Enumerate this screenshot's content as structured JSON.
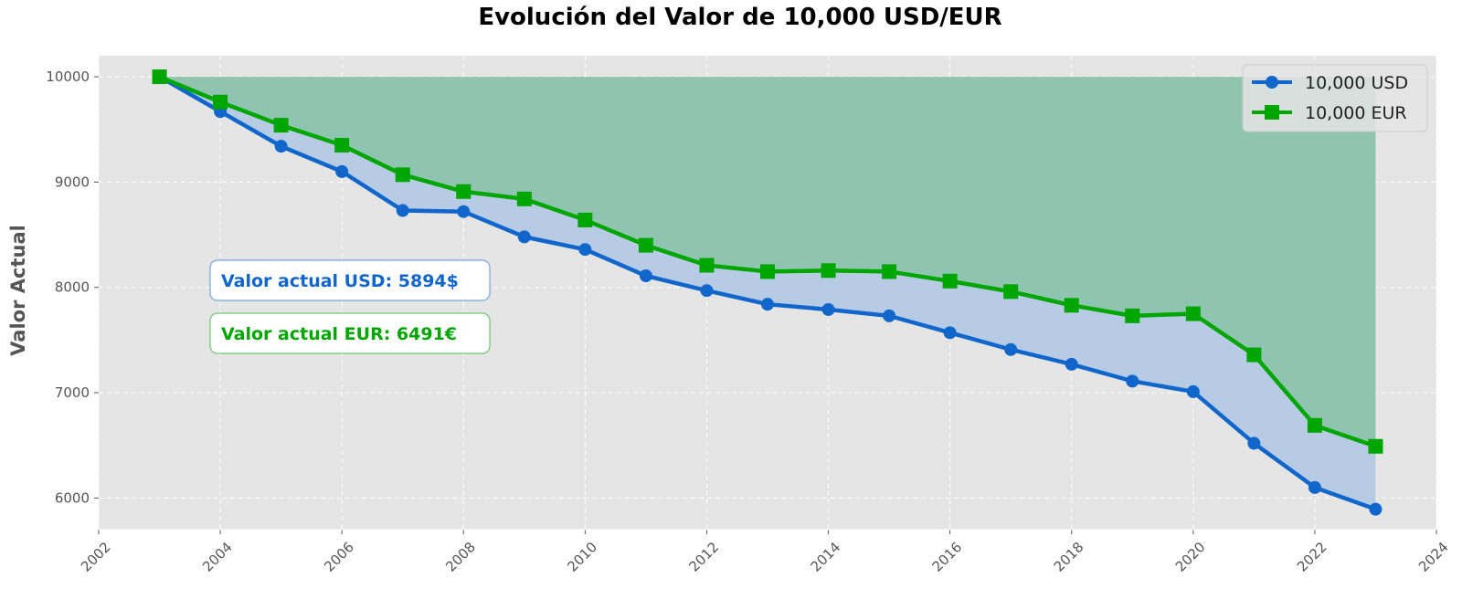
{
  "chart_data": {
    "type": "line",
    "title": "Evolución del Valor de 10,000 USD/EUR",
    "xlabel": "",
    "ylabel": "Valor Actual",
    "xlim": [
      2002,
      2024
    ],
    "ylim": [
      5700,
      10200
    ],
    "x_ticks": [
      2002,
      2004,
      2006,
      2008,
      2010,
      2012,
      2014,
      2016,
      2018,
      2020,
      2022,
      2024
    ],
    "y_ticks": [
      6000,
      7000,
      8000,
      9000,
      10000
    ],
    "grid": true,
    "legend_position": "top-right",
    "x": [
      2003,
      2004,
      2005,
      2006,
      2007,
      2008,
      2009,
      2010,
      2011,
      2012,
      2013,
      2014,
      2015,
      2016,
      2017,
      2018,
      2019,
      2020,
      2021,
      2022,
      2023
    ],
    "series": [
      {
        "name": "10,000 USD",
        "color": "#1166cc",
        "marker": "circle",
        "values": [
          10000,
          9670,
          9340,
          9100,
          8730,
          8720,
          8480,
          8360,
          8110,
          7970,
          7840,
          7790,
          7730,
          7570,
          7410,
          7270,
          7110,
          7010,
          6520,
          6100,
          5894
        ]
      },
      {
        "name": "10,000 EUR",
        "color": "#00a600",
        "marker": "square",
        "values": [
          10000,
          9760,
          9540,
          9350,
          9070,
          8910,
          8840,
          8640,
          8400,
          8210,
          8150,
          8160,
          8150,
          8060,
          7960,
          7830,
          7730,
          7750,
          7360,
          6690,
          6491
        ]
      }
    ],
    "fills": [
      {
        "between": [
          "10,000 USD",
          "10,000 EUR"
        ],
        "color": "#b7cce4"
      },
      {
        "between": [
          "10,000 EUR",
          10000
        ],
        "color": "#8fc4b0"
      }
    ],
    "annotations": [
      {
        "text": "Valor actual USD: 5894$",
        "color": "#1166cc"
      },
      {
        "text": "Valor actual EUR: 6491€",
        "color": "#00a600"
      }
    ]
  }
}
